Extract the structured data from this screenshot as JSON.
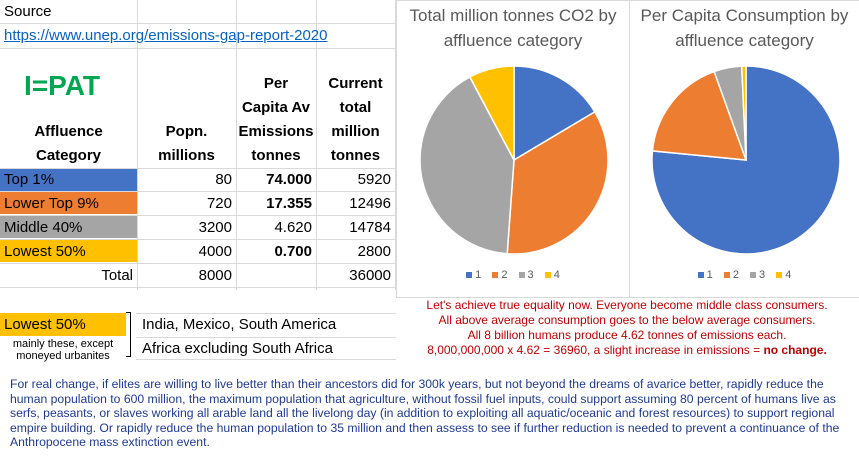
{
  "source": {
    "label": "Source",
    "url": "https://www.unep.org/emissions-gap-report-2020"
  },
  "ipat": "I=PAT",
  "table": {
    "headers": {
      "category": [
        "Affluence",
        "Category"
      ],
      "popn": [
        "Popn.",
        "millions"
      ],
      "percap": [
        "Per",
        "Capita Av",
        "Emissions",
        "tonnes"
      ],
      "total": [
        "Current",
        "total",
        "million",
        "tonnes"
      ]
    },
    "rows": [
      {
        "category": "Top 1%",
        "popn": "80",
        "percap": "74.000",
        "total": "5920",
        "color": "#4472c4",
        "bold": true
      },
      {
        "category": "Lower Top 9%",
        "popn": "720",
        "percap": "17.355",
        "total": "12496",
        "color": "#ed7d31",
        "bold": true
      },
      {
        "category": "Middle 40%",
        "popn": "3200",
        "percap": "4.620",
        "total": "14784",
        "color": "#a5a5a5",
        "bold": false
      },
      {
        "category": "Lowest 50%",
        "popn": "4000",
        "percap": "0.700",
        "total": "2800",
        "color": "#ffc000",
        "bold": true
      }
    ],
    "total_row": {
      "label": "Total",
      "popn": "8000",
      "total": "36000"
    }
  },
  "lower_table": {
    "label": "Lowest 50%",
    "sub_note": [
      "mainly these, except",
      "moneyed urbanites"
    ],
    "regions": [
      "India, Mexico, South America",
      "Africa excluding South Africa"
    ]
  },
  "chart_data": [
    {
      "type": "pie",
      "title": "Total million tonnes CO2 by affluence category",
      "categories": [
        "1",
        "2",
        "3",
        "4"
      ],
      "values": [
        5920,
        12496,
        14784,
        2800
      ],
      "colors": [
        "#4472c4",
        "#ed7d31",
        "#a5a5a5",
        "#ffc000"
      ],
      "legend": "bottom"
    },
    {
      "type": "pie",
      "title": "Per Capita Consumption by affluence category",
      "categories": [
        "1",
        "2",
        "3",
        "4"
      ],
      "values": [
        74.0,
        17.355,
        4.62,
        0.7
      ],
      "colors": [
        "#4472c4",
        "#ed7d31",
        "#a5a5a5",
        "#ffc000"
      ],
      "legend": "bottom"
    }
  ],
  "note": {
    "line1": "Let's achieve true equality now. Everyone become middle class consumers.",
    "line2": "All above average consumption goes to the below average consumers.",
    "line3": "All 8 billion humans produce 4.62 tonnes of emissions each.",
    "line4": "8,000,000,000 x 4.62 = 36960, a slight increase in emissions = ",
    "line4_bold": "no change."
  },
  "footer": "For real change, if elites are willing to live better than their ancestors did for 300k years, but not beyond the dreams of avarice better, rapidly reduce the human population to 600 million, the maximum population that agriculture, without fossil fuel inputs, could support assuming 80 percent of humans live as serfs, peasants, or slaves working all arable land all the livelong day (in addition to exploiting all aquatic/oceanic and forest resources) to support regional empire building.  Or rapidly reduce the human population to 35 million and then assess to see if further reduction is needed to prevent a continuance of the Anthropocene mass extinction event."
}
